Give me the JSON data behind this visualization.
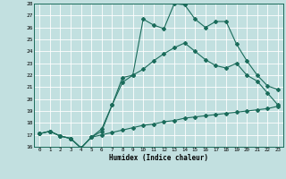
{
  "xlabel": "Humidex (Indice chaleur)",
  "bg_color": "#c2e0e0",
  "grid_color": "#b0d0d0",
  "line_color": "#1a6b5a",
  "spine_color": "#1a6b5a",
  "ylim": [
    16,
    28
  ],
  "xlim": [
    -0.5,
    23.5
  ],
  "yticks": [
    16,
    17,
    18,
    19,
    20,
    21,
    22,
    23,
    24,
    25,
    26,
    27,
    28
  ],
  "xticks": [
    0,
    1,
    2,
    3,
    4,
    5,
    6,
    7,
    8,
    9,
    10,
    11,
    12,
    13,
    14,
    15,
    16,
    17,
    18,
    19,
    20,
    21,
    22,
    23
  ],
  "line1_x": [
    0,
    1,
    2,
    3,
    4,
    5,
    6,
    7,
    8,
    9,
    10,
    11,
    12,
    13,
    14,
    15,
    16,
    17,
    18,
    19,
    20,
    21,
    22,
    23
  ],
  "line1_y": [
    17.1,
    17.3,
    16.9,
    16.7,
    15.9,
    16.8,
    17.0,
    17.2,
    17.4,
    17.6,
    17.8,
    17.9,
    18.1,
    18.2,
    18.4,
    18.5,
    18.6,
    18.7,
    18.8,
    18.9,
    19.0,
    19.1,
    19.2,
    19.4
  ],
  "line2_x": [
    0,
    1,
    2,
    3,
    4,
    5,
    6,
    7,
    8,
    9,
    10,
    11,
    12,
    13,
    14,
    15,
    16,
    17,
    18,
    19,
    20,
    21,
    22,
    23
  ],
  "line2_y": [
    17.1,
    17.3,
    16.9,
    16.7,
    15.9,
    16.8,
    17.5,
    19.5,
    21.4,
    22.0,
    22.5,
    23.2,
    23.8,
    24.3,
    24.7,
    24.0,
    23.3,
    22.8,
    22.6,
    23.0,
    22.0,
    21.5,
    20.5,
    19.5
  ],
  "line3_x": [
    0,
    1,
    2,
    3,
    4,
    5,
    6,
    7,
    8,
    9,
    10,
    11,
    12,
    13,
    14,
    15,
    16,
    17,
    18,
    19,
    20,
    21,
    22,
    23
  ],
  "line3_y": [
    17.1,
    17.3,
    16.9,
    16.7,
    15.9,
    16.8,
    17.3,
    19.5,
    21.8,
    22.0,
    26.7,
    26.2,
    25.9,
    28.0,
    27.9,
    26.7,
    26.0,
    26.5,
    26.5,
    24.6,
    23.2,
    22.0,
    21.1,
    20.8
  ]
}
